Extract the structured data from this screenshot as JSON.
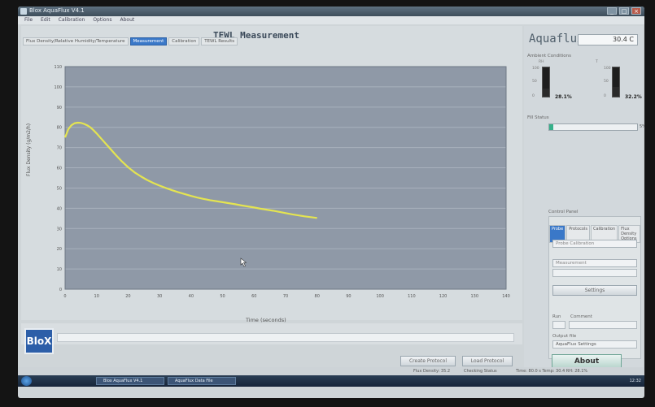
{
  "window": {
    "title": "Blox AquaFlux V4.1"
  },
  "menu": [
    "File",
    "Edit",
    "Calibration",
    "Options",
    "About"
  ],
  "main": {
    "title": "TEWL Measurement",
    "tabs": [
      {
        "label": "Flux Density/Relative Humidity/Temperature",
        "active": false
      },
      {
        "label": "Measurement",
        "active": true
      },
      {
        "label": "Calibration",
        "active": false
      },
      {
        "label": "TEWL Results",
        "active": false
      }
    ],
    "footer_buttons": {
      "create": "Create Protocol",
      "load": "Load Protocol"
    }
  },
  "chart_data": {
    "type": "line",
    "xlabel": "Time (seconds)",
    "ylabel": "Flux Density (g/m2/h)",
    "xlim": [
      0,
      140
    ],
    "ylim": [
      0,
      110
    ],
    "x_ticks": [
      "0",
      "10",
      "20",
      "30",
      "40",
      "50",
      "60",
      "70",
      "80",
      "90",
      "100",
      "110",
      "120",
      "130",
      "140"
    ],
    "y_ticks": [
      "0",
      "10",
      "20",
      "30",
      "40",
      "50",
      "60",
      "70",
      "80",
      "90",
      "100",
      "110"
    ],
    "grid": true,
    "series": [
      {
        "color": "#e4e451",
        "x": [
          0,
          1,
          2,
          3,
          4,
          5,
          6,
          7,
          8,
          9,
          10,
          12,
          14,
          16,
          18,
          20,
          22,
          24,
          26,
          28,
          30,
          32,
          34,
          36,
          38,
          40,
          42,
          44,
          46,
          48,
          50,
          52,
          54,
          56,
          58,
          60,
          62,
          64,
          66,
          68,
          70,
          72,
          74,
          76,
          78,
          80
        ],
        "y": [
          75,
          79,
          81,
          82,
          82.3,
          82.2,
          81.7,
          81,
          80,
          78.6,
          77,
          73.5,
          70,
          66.5,
          63.2,
          60.3,
          57.8,
          55.8,
          54,
          52.5,
          51.2,
          50,
          48.9,
          47.9,
          47,
          46.1,
          45.3,
          44.6,
          44,
          43.5,
          43,
          42.5,
          42,
          41.4,
          40.9,
          40.4,
          39.8,
          39.3,
          38.8,
          38.2,
          37.6,
          37,
          36.5,
          36,
          35.6,
          35.2
        ]
      }
    ]
  },
  "side": {
    "logo_text": "Aquaflux",
    "temperature": "30.4 C",
    "ambient_label": "Ambient Conditions",
    "gauge_rh_value": "28.1%",
    "gauge_rh_level": 0.28,
    "gauge_t_value": "32.2%",
    "gauge_t_level": 0.32,
    "gauge_label_rh": "RH",
    "gauge_label_t": "T",
    "gauge_ticks": [
      "100",
      "50",
      "0"
    ],
    "fill_label": "Fill Status",
    "fill_value": "5%",
    "fill_level": 0.05,
    "control_label": "Control Panel",
    "control_tabs": [
      "Probe",
      "Protocols",
      "Calibration",
      "Flux Density Options"
    ],
    "control_active": "Probe",
    "select_1": "Probe Calibration",
    "select_2": "Measurement",
    "settings_btn": "Settings",
    "run_label": "Run",
    "comment_label": "Comment",
    "output_label": "Output file",
    "output_value": "AquaFlux Settings",
    "about_btn": "About"
  },
  "status": {
    "left": "Flux Density: 35.2",
    "mid": "Checking Status",
    "right": "Time: 80.0 s  Temp: 30.4  RH: 28.1%"
  },
  "taskbar": {
    "items": [
      "Blox AquaFlux V4.1",
      "AquaFlux Data File"
    ],
    "tray": "12:32"
  },
  "logo_text": "BloX"
}
